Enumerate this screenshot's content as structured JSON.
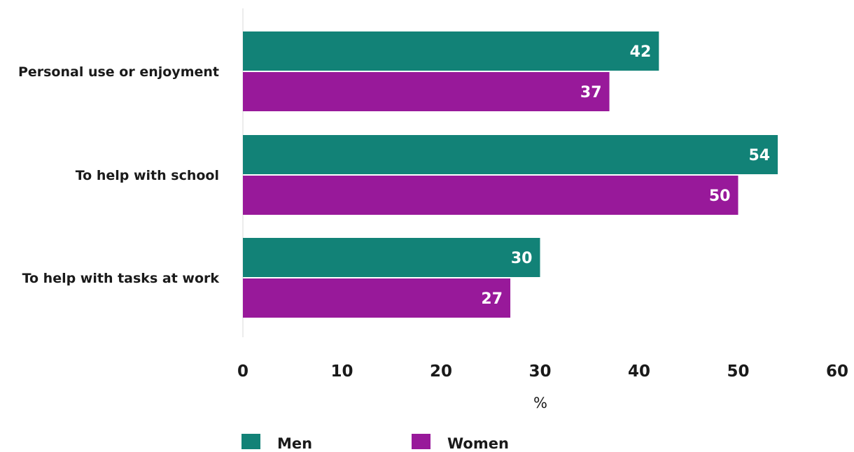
{
  "chart_data": {
    "type": "bar",
    "orientation": "horizontal",
    "categories": [
      "Personal use or enjoyment",
      "To help with school",
      "To help with tasks at work"
    ],
    "series": [
      {
        "name": "Men",
        "values": [
          42,
          54,
          30
        ],
        "color": "#128277"
      },
      {
        "name": "Women",
        "values": [
          37,
          50,
          27
        ],
        "color": "#98199a"
      }
    ],
    "xlabel": "%",
    "xlim": [
      0,
      60
    ],
    "xticks": [
      0,
      10,
      20,
      30,
      40,
      50,
      60
    ],
    "grid": false,
    "legend_position": "bottom"
  }
}
